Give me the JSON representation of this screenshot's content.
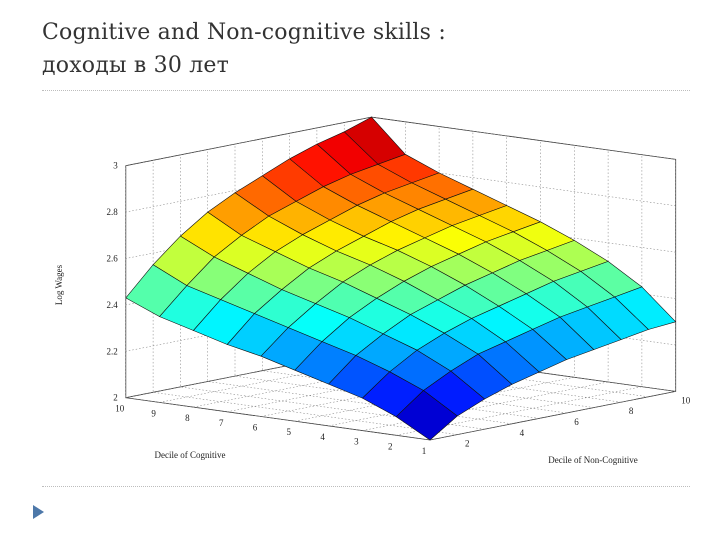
{
  "slide": {
    "title_line1": "Cognitive and Non-cognitive skills :",
    "title_line2": "доходы в 30 лет"
  },
  "chart_data": {
    "type": "surface",
    "title": "",
    "zlabel": "Log Wages",
    "xlabel": "Decile of Cognitive",
    "ylabel": "Decile of Non-Cognitive",
    "zlim": [
      2,
      3
    ],
    "z_ticks": [
      "2",
      "2.2",
      "2.4",
      "2.6",
      "2.8",
      "3"
    ],
    "x_ticks": [
      "10",
      "9",
      "8",
      "7",
      "6",
      "5",
      "4",
      "3",
      "2",
      "1"
    ],
    "y_ticks": [
      "2",
      "4",
      "6",
      "8",
      "10"
    ],
    "grid": true,
    "colormap": "jet",
    "cognitive_deciles": [
      1,
      2,
      3,
      4,
      5,
      6,
      7,
      8,
      9,
      10
    ],
    "noncognitive_deciles": [
      1,
      2,
      3,
      4,
      5,
      6,
      7,
      8,
      9,
      10
    ],
    "log_wages": [
      [
        2.0,
        2.08,
        2.13,
        2.17,
        2.2,
        2.23,
        2.25,
        2.27,
        2.29,
        2.3
      ],
      [
        2.08,
        2.17,
        2.23,
        2.28,
        2.31,
        2.34,
        2.37,
        2.39,
        2.41,
        2.43
      ],
      [
        2.14,
        2.23,
        2.3,
        2.35,
        2.39,
        2.42,
        2.45,
        2.48,
        2.5,
        2.52
      ],
      [
        2.18,
        2.28,
        2.35,
        2.41,
        2.45,
        2.49,
        2.52,
        2.55,
        2.57,
        2.59
      ],
      [
        2.22,
        2.32,
        2.4,
        2.46,
        2.51,
        2.55,
        2.58,
        2.61,
        2.63,
        2.65
      ],
      [
        2.26,
        2.36,
        2.44,
        2.51,
        2.56,
        2.6,
        2.63,
        2.66,
        2.68,
        2.7
      ],
      [
        2.29,
        2.4,
        2.48,
        2.55,
        2.6,
        2.64,
        2.68,
        2.71,
        2.73,
        2.75
      ],
      [
        2.33,
        2.44,
        2.53,
        2.6,
        2.65,
        2.69,
        2.73,
        2.76,
        2.78,
        2.8
      ],
      [
        2.37,
        2.48,
        2.58,
        2.65,
        2.71,
        2.75,
        2.79,
        2.82,
        2.84,
        2.86
      ],
      [
        2.43,
        2.55,
        2.65,
        2.73,
        2.79,
        2.84,
        2.89,
        2.93,
        2.96,
        3.0
      ]
    ]
  }
}
